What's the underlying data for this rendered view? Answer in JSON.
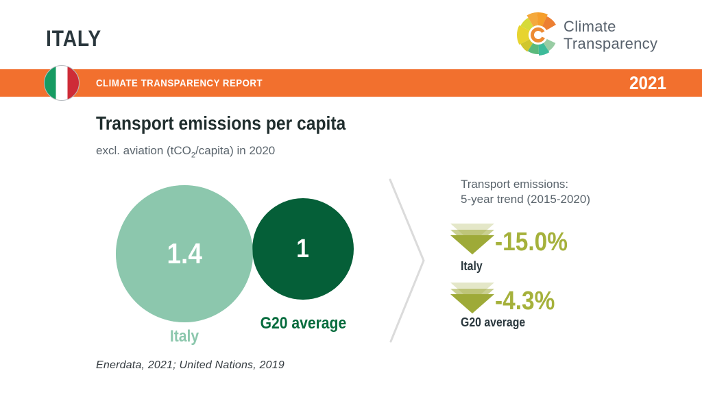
{
  "header": {
    "country": "ITALY",
    "logo": {
      "name": "climate-transparency-wheel-logo",
      "line1": "Climate",
      "line2": "Transparency"
    }
  },
  "banner": {
    "report_title": "CLIMATE TRANSPARENCY REPORT",
    "year": "2021",
    "flag": "italy-flag-icon"
  },
  "chart": {
    "title": "Transport emissions per capita",
    "subtitle_prefix": "excl. aviation (tCO",
    "subtitle_sub": "2",
    "subtitle_suffix": "/capita) in 2020",
    "bubbles": [
      {
        "label": "Italy",
        "value": "1.4"
      },
      {
        "label": "G20 average",
        "value": "1"
      }
    ]
  },
  "trend": {
    "heading_line1": "Transport emissions:",
    "heading_line2": "5-year trend (2015-2020)",
    "icon": "triple-triangle-down-icon",
    "items": [
      {
        "label": "Italy",
        "value": "-15.0%"
      },
      {
        "label": "G20 average",
        "value": "-4.3%"
      }
    ]
  },
  "source": "Enerdata, 2021; United Nations, 2019",
  "colors": {
    "accent_orange": "#F2702E",
    "light_green": "#8CC7AD",
    "dark_green": "#055F38",
    "dark_green_text": "#056B3C",
    "olive": "#A5B13B",
    "olive_arrow": "#9EAA38",
    "heading_dark": "#2A373D",
    "text_gray": "#5A646C",
    "divider_gray": "#DBDBDB",
    "flag_green": "#169B62",
    "flag_red": "#CE2B37"
  },
  "chart_data": {
    "type": "bubble",
    "title": "Transport emissions per capita",
    "subtitle": "excl. aviation (tCO2/capita) in 2020",
    "unit": "tCO2/capita",
    "year": 2020,
    "categories": [
      "Italy",
      "G20 average"
    ],
    "values": [
      1.4,
      1
    ],
    "trend": {
      "title": "Transport emissions: 5-year trend (2015-2020)",
      "period": "2015-2020",
      "series": [
        {
          "name": "Italy",
          "change_percent": -15.0
        },
        {
          "name": "G20 average",
          "change_percent": -4.3
        }
      ]
    },
    "source": "Enerdata, 2021; United Nations, 2019"
  }
}
